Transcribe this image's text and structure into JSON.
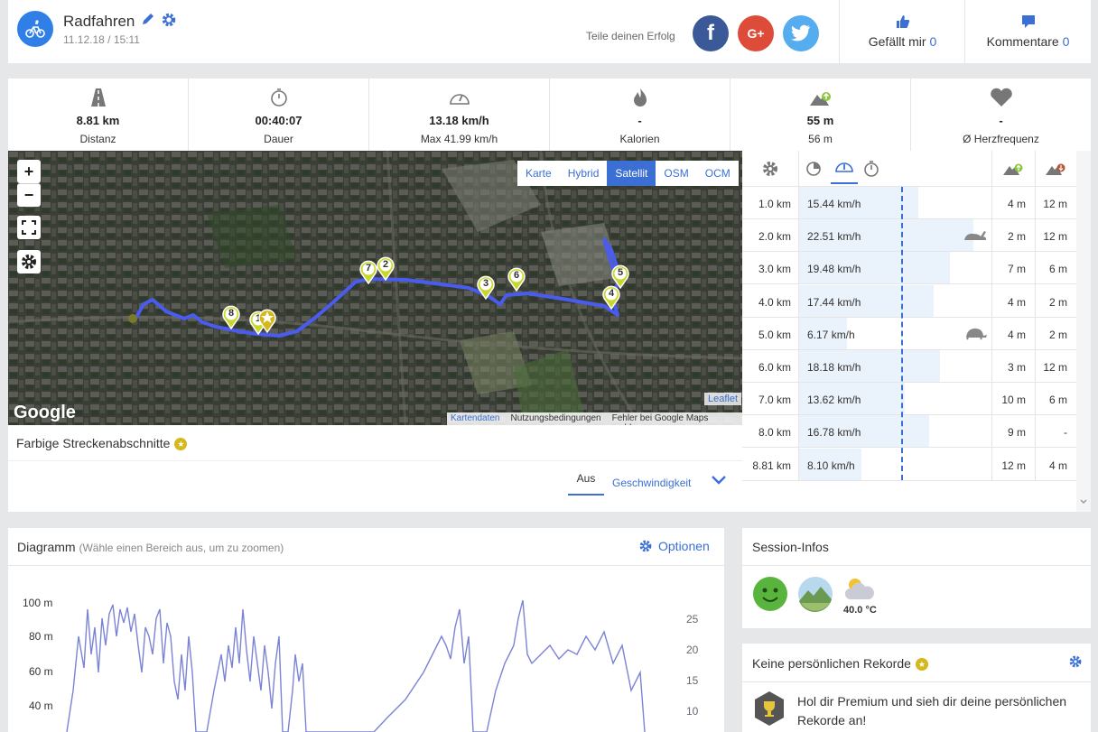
{
  "header": {
    "title": "Radfahren",
    "date": "11.12.18 / 15:11",
    "share_label": "Teile deinen Erfolg",
    "like_label": "Gefällt mir",
    "like_count": "0",
    "comments_label": "Kommentare",
    "comments_count": "0",
    "fb": "f",
    "gp": "G+"
  },
  "stats": [
    {
      "icon": "road-icon",
      "value": "8.81 km",
      "sub": "Distanz"
    },
    {
      "icon": "stopwatch-icon",
      "value": "00:40:07",
      "sub": "Dauer"
    },
    {
      "icon": "speedometer-icon",
      "value": "13.18 km/h",
      "sub": "Max 41.99 km/h"
    },
    {
      "icon": "flame-icon",
      "value": "-",
      "sub": "Kalorien"
    },
    {
      "icon": "elevation-up-icon",
      "value": "55 m",
      "sub": "56 m"
    },
    {
      "icon": "heart-icon",
      "value": "-",
      "sub": "Ø Herzfrequenz"
    }
  ],
  "map": {
    "tabs": [
      {
        "label": "Karte"
      },
      {
        "label": "Hybrid"
      },
      {
        "label": "Satellit",
        "active": true
      },
      {
        "label": "OSM"
      },
      {
        "label": "OCM"
      }
    ],
    "google": "Google",
    "leaflet": "Leaflet",
    "attr": [
      "Kartendaten",
      "Nutzungsbedingungen",
      "Fehler bei Google Maps melden"
    ],
    "markers": [
      "7",
      "2",
      "3",
      "6",
      "5",
      "4",
      "8",
      "1"
    ],
    "zoom_in": "+",
    "zoom_out": "−"
  },
  "segments": {
    "title": "Farbige Streckenabschnitte",
    "star": "★",
    "off": "Aus",
    "speed": "Geschwindigkeit"
  },
  "km_table": {
    "avg_speed": 13.18,
    "max_bar_speed": 25,
    "rows": [
      {
        "km": "1.0 km",
        "speed": "15.44 km/h",
        "v": 15.44,
        "up": "4 m",
        "down": "12 m",
        "badge": ""
      },
      {
        "km": "2.0 km",
        "speed": "22.51 km/h",
        "v": 22.51,
        "up": "2 m",
        "down": "12 m",
        "badge": "rabbit-icon"
      },
      {
        "km": "3.0 km",
        "speed": "19.48 km/h",
        "v": 19.48,
        "up": "7 m",
        "down": "6 m",
        "badge": ""
      },
      {
        "km": "4.0 km",
        "speed": "17.44 km/h",
        "v": 17.44,
        "up": "4 m",
        "down": "2 m",
        "badge": ""
      },
      {
        "km": "5.0 km",
        "speed": "6.17 km/h",
        "v": 6.17,
        "up": "4 m",
        "down": "2 m",
        "badge": "turtle-icon"
      },
      {
        "km": "6.0 km",
        "speed": "18.18 km/h",
        "v": 18.18,
        "up": "3 m",
        "down": "12 m",
        "badge": ""
      },
      {
        "km": "7.0 km",
        "speed": "13.62 km/h",
        "v": 13.62,
        "up": "10 m",
        "down": "6 m",
        "badge": ""
      },
      {
        "km": "8.0 km",
        "speed": "16.78 km/h",
        "v": 16.78,
        "up": "9 m",
        "down": "-",
        "badge": ""
      },
      {
        "km": "8.81 km",
        "speed": "8.10 km/h",
        "v": 8.1,
        "up": "12 m",
        "down": "4 m",
        "badge": ""
      }
    ]
  },
  "diagram": {
    "title": "Diagramm",
    "hint": "(Wähle einen Bereich aus, um zu zoomen)",
    "options": "Optionen",
    "chart_data": {
      "type": "line",
      "left_ticks": [
        "100 m",
        "80 m",
        "60 m",
        "40 m"
      ],
      "right_ticks": [
        "25",
        "20",
        "15",
        "10"
      ]
    }
  },
  "session": {
    "title": "Session-Infos",
    "temp": "40.0 °C"
  },
  "records": {
    "title": "Keine persönlichen Rekorde",
    "text": "Hol dir Premium und sieh dir deine persönlichen Rekorde an!"
  },
  "colors": {
    "accent": "#3b6fd4",
    "route": "#4a5cf0",
    "marker": "#c8d82a"
  }
}
